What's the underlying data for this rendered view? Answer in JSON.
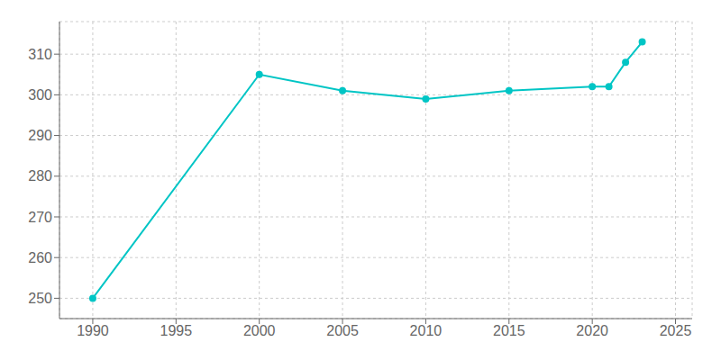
{
  "chart_data": {
    "type": "line",
    "x": [
      1990,
      2000,
      2005,
      2010,
      2015,
      2020,
      2021,
      2022,
      2023
    ],
    "values": [
      250,
      305,
      301,
      299,
      301,
      302,
      302,
      308,
      313
    ],
    "color": "#00C5C5",
    "marker": "circle",
    "xlim": [
      1988,
      2026
    ],
    "ylim": [
      245,
      318
    ],
    "xticks": [
      1990,
      1995,
      2000,
      2005,
      2010,
      2015,
      2020,
      2025
    ],
    "yticks": [
      250,
      260,
      270,
      280,
      290,
      300,
      310
    ],
    "grid": true
  }
}
